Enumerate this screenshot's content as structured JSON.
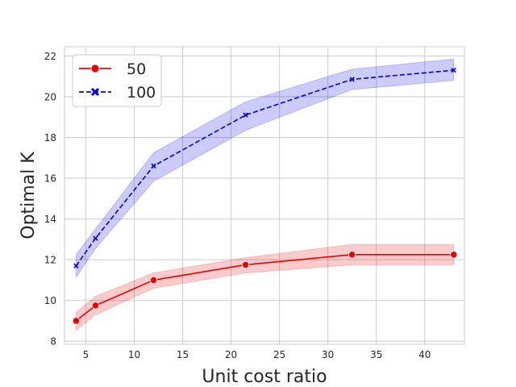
{
  "chart_data": {
    "type": "line",
    "xlabel": "Unit cost ratio",
    "ylabel": "Optimal K",
    "xlim": [
      2.8,
      44.1
    ],
    "ylim": [
      7.85,
      22.45
    ],
    "xticks": [
      5,
      10,
      15,
      20,
      25,
      30,
      35,
      40
    ],
    "yticks": [
      8,
      10,
      12,
      14,
      16,
      18,
      20,
      22
    ],
    "grid": true,
    "legend_position": "top-left",
    "series": [
      {
        "name": "50",
        "color": "#ee0000",
        "line_style": "solid",
        "marker": "circle",
        "x": [
          4,
          6,
          12,
          21.5,
          32.5,
          43
        ],
        "y": [
          9.0,
          9.75,
          11.0,
          11.75,
          12.25,
          12.25
        ],
        "ci_low": [
          8.55,
          9.3,
          10.6,
          11.35,
          11.75,
          11.75
        ],
        "ci_high": [
          9.4,
          10.2,
          11.35,
          12.1,
          12.75,
          12.75
        ]
      },
      {
        "name": "100",
        "color": "#0000ee",
        "line_style": "dashed",
        "marker": "x",
        "x": [
          4,
          6,
          12,
          21.5,
          32.5,
          43
        ],
        "y": [
          11.7,
          13.05,
          16.6,
          19.1,
          20.85,
          21.3
        ],
        "ci_low": [
          11.15,
          12.55,
          15.85,
          18.35,
          20.35,
          20.8
        ],
        "ci_high": [
          12.25,
          13.5,
          17.25,
          19.75,
          21.35,
          21.85
        ]
      }
    ]
  }
}
